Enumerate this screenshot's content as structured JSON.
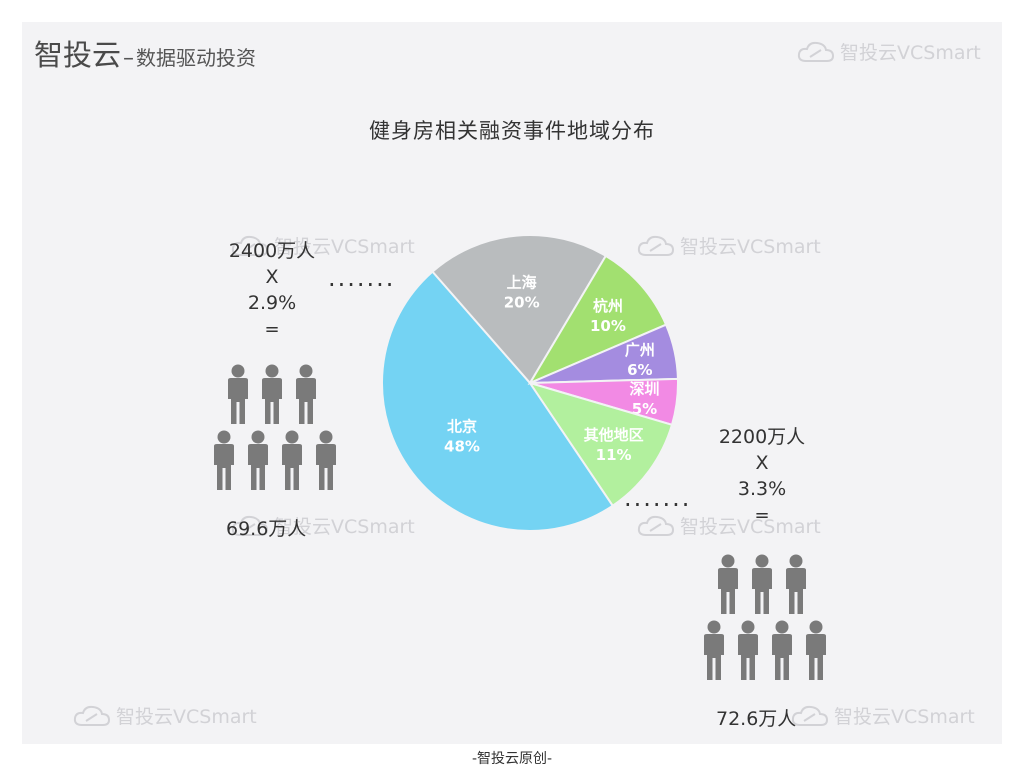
{
  "header": {
    "brand": "智投云",
    "dash": "–",
    "tagline": "数据驱动投资",
    "watermark": "智投云VCSmart"
  },
  "chart_data": {
    "type": "pie",
    "title": "健身房相关融资事件地域分布",
    "slices": [
      {
        "label": "北京",
        "value": 48,
        "value_label": "48%",
        "color": "#74d3f3"
      },
      {
        "label": "上海",
        "value": 20,
        "value_label": "20%",
        "color": "#b9bcbe"
      },
      {
        "label": "杭州",
        "value": 10,
        "value_label": "10%",
        "color": "#a2e070"
      },
      {
        "label": "广州",
        "value": 6,
        "value_label": "6%",
        "color": "#a48ce0"
      },
      {
        "label": "深圳",
        "value": 5,
        "value_label": "5%",
        "color": "#f28ae4"
      },
      {
        "label": "其他地区",
        "value": 11,
        "value_label": "11%",
        "color": "#b2f09e"
      }
    ]
  },
  "left_calc": {
    "population": "2400万人",
    "times": "X",
    "rate": "2.9%",
    "equals": "=",
    "result": "69.6万人",
    "leader": "·······"
  },
  "right_calc": {
    "population": "2200万人",
    "times": "X",
    "rate": "3.3%",
    "equals": "=",
    "result": "72.6万人",
    "leader": "·······"
  },
  "colors": {
    "person": "#7a7a7a",
    "panel": "#f3f3f5",
    "watermark": "#d2d2d6"
  },
  "icons": {
    "person": "person-icon",
    "watermark_logo": "cloud-logo-icon"
  },
  "footer": "-智投云原创-"
}
